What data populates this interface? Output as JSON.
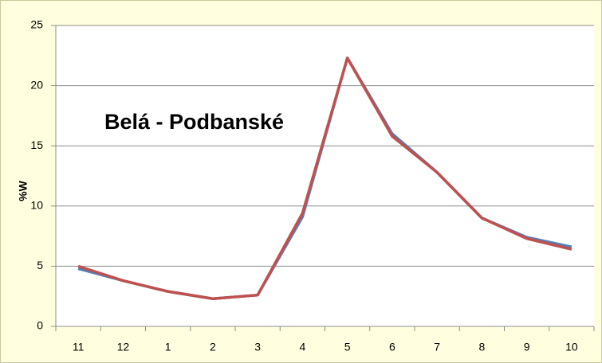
{
  "chart_data": {
    "type": "line",
    "title": "Belá - Podbanské",
    "ylabel": "%W",
    "categories": [
      "11",
      "12",
      "1",
      "2",
      "3",
      "4",
      "5",
      "6",
      "7",
      "8",
      "9",
      "10"
    ],
    "series": [
      {
        "color": "#4f81bd",
        "values": [
          4.8,
          3.8,
          2.9,
          2.3,
          2.6,
          9.1,
          22.3,
          16.0,
          12.8,
          9.0,
          7.4,
          6.6
        ]
      },
      {
        "color": "#c0504d",
        "values": [
          5.0,
          3.8,
          2.9,
          2.3,
          2.6,
          9.4,
          22.3,
          15.8,
          12.8,
          9.0,
          7.3,
          6.4
        ]
      }
    ],
    "ylim": [
      0,
      25
    ],
    "yticks": [
      0,
      5,
      10,
      15,
      20,
      25
    ],
    "grid": true
  }
}
